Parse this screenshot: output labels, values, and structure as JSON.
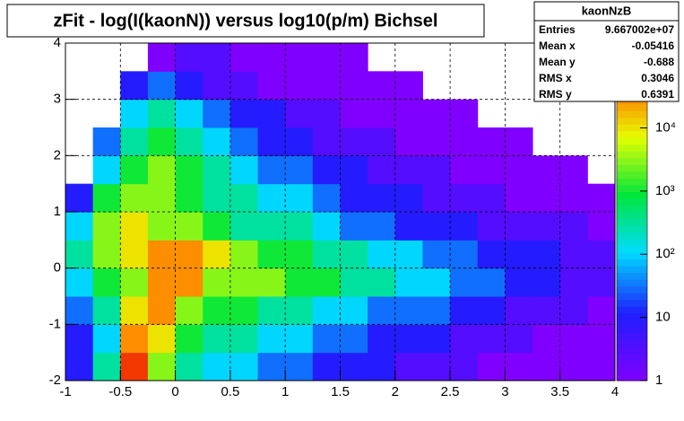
{
  "chart_data": {
    "type": "heatmap",
    "title": "zFit - log(I(kaonN)) versus log10(p/m) Bichsel",
    "x_bins": [
      -1,
      -0.75,
      -0.5,
      -0.25,
      0,
      0.25,
      0.5,
      0.75,
      1,
      1.25,
      1.5,
      1.75,
      2,
      2.25,
      2.5,
      2.75,
      3,
      3.25,
      3.5,
      3.75,
      4
    ],
    "y_bins": [
      -2,
      -1.5,
      -1,
      -0.5,
      0,
      0.5,
      1,
      1.5,
      2,
      2.5,
      3,
      3.5,
      4
    ],
    "values": [
      [
        10,
        300,
        100000,
        3000,
        300,
        100,
        100,
        30,
        30,
        10,
        10,
        10,
        3,
        3,
        3,
        1,
        1,
        1,
        1,
        1
      ],
      [
        10,
        100,
        30000,
        10000,
        1000,
        300,
        300,
        100,
        100,
        30,
        30,
        10,
        10,
        10,
        3,
        3,
        3,
        1,
        1,
        1
      ],
      [
        30,
        300,
        10000,
        30000,
        3000,
        1000,
        1000,
        300,
        300,
        100,
        100,
        30,
        30,
        30,
        10,
        10,
        3,
        3,
        3,
        1
      ],
      [
        100,
        1000,
        3000,
        30000,
        30000,
        3000,
        3000,
        3000,
        1000,
        1000,
        300,
        300,
        100,
        100,
        30,
        30,
        10,
        10,
        3,
        3
      ],
      [
        300,
        3000,
        10000,
        30000,
        30000,
        10000,
        3000,
        1000,
        1000,
        300,
        300,
        100,
        100,
        30,
        30,
        10,
        10,
        10,
        3,
        3
      ],
      [
        100,
        3000,
        10000,
        3000,
        3000,
        1000,
        300,
        300,
        300,
        100,
        30,
        30,
        10,
        10,
        10,
        3,
        3,
        3,
        3,
        1
      ],
      [
        10,
        1000,
        3000,
        3000,
        1000,
        300,
        300,
        100,
        100,
        30,
        10,
        10,
        10,
        3,
        3,
        3,
        1,
        1,
        1,
        1
      ],
      [
        null,
        100,
        1000,
        3000,
        1000,
        300,
        100,
        30,
        30,
        10,
        10,
        3,
        3,
        3,
        1,
        1,
        1,
        1,
        1,
        null
      ],
      [
        null,
        30,
        300,
        1000,
        300,
        100,
        30,
        10,
        10,
        3,
        3,
        3,
        1,
        1,
        1,
        1,
        1,
        null,
        null,
        null
      ],
      [
        null,
        null,
        100,
        300,
        100,
        30,
        10,
        10,
        3,
        3,
        1,
        1,
        1,
        1,
        1,
        null,
        null,
        null,
        null,
        null
      ],
      [
        null,
        null,
        10,
        30,
        10,
        3,
        3,
        1,
        1,
        1,
        1,
        1,
        1,
        null,
        null,
        null,
        null,
        null,
        null,
        null
      ],
      [
        null,
        null,
        null,
        1,
        3,
        3,
        1,
        1,
        1,
        1,
        1,
        null,
        null,
        null,
        null,
        null,
        null,
        null,
        null,
        null
      ]
    ],
    "xlim": [
      -1,
      4
    ],
    "xticks": [
      -1,
      -0.5,
      0,
      0.5,
      1,
      1.5,
      2,
      2.5,
      3,
      3.5,
      4
    ],
    "ylim": [
      -2,
      4
    ],
    "yticks": [
      -2,
      -1,
      0,
      1,
      2,
      3,
      4
    ],
    "zlim": [
      1,
      220000
    ],
    "zlog": true,
    "zticks": [
      1,
      10,
      {
        "value": 100,
        "label": "10²"
      },
      {
        "value": 1000,
        "label": "10³"
      },
      {
        "value": 10000,
        "label": "10⁴"
      }
    ],
    "grid": true,
    "stats": {
      "title": "kaonNzB",
      "rows": [
        [
          "Entries",
          "9.667002e+07"
        ],
        [
          "Mean x",
          "-0.05416"
        ],
        [
          "Mean y",
          "-0.688"
        ],
        [
          "RMS x",
          "0.3046"
        ],
        [
          "RMS y",
          "0.6391"
        ]
      ]
    }
  }
}
